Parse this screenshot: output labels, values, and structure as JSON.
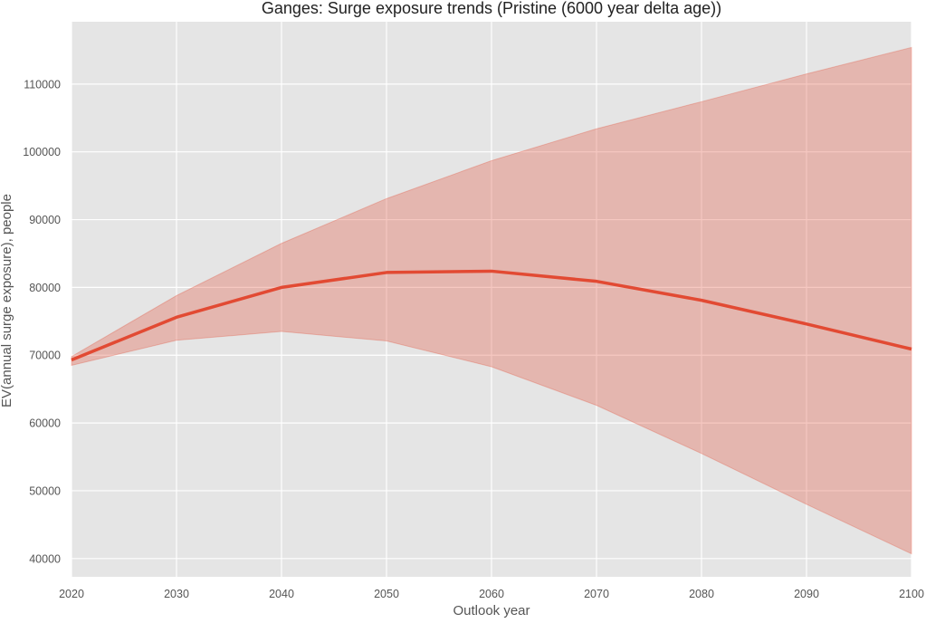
{
  "chart_data": {
    "type": "line",
    "title": "Ganges: Surge exposure trends (Pristine (6000 year delta age))",
    "xlabel": "Outlook year",
    "ylabel": "EV(annual surge exposure), people",
    "x": [
      2020,
      2030,
      2040,
      2050,
      2060,
      2070,
      2080,
      2090,
      2100
    ],
    "series": [
      {
        "values": [
          69300,
          75600,
          80000,
          82200,
          82400,
          80900,
          78100,
          74600,
          70900
        ],
        "lower": [
          68500,
          72200,
          73500,
          72100,
          68300,
          62600,
          55500,
          48000,
          40700
        ],
        "upper": [
          69800,
          78800,
          86500,
          93100,
          98700,
          103400,
          107400,
          111500,
          115400
        ]
      }
    ],
    "xlim": [
      2020,
      2100
    ],
    "ylim": [
      37300,
      119200
    ],
    "xticks": [
      "2020",
      "2030",
      "2040",
      "2050",
      "2060",
      "2070",
      "2080",
      "2090",
      "2100"
    ],
    "yticks": [
      "40000",
      "50000",
      "60000",
      "70000",
      "80000",
      "90000",
      "100000",
      "110000"
    ],
    "grid": true,
    "colors": {
      "line": "#e24a33",
      "band": "#e24a33",
      "plot_bg": "#e5e5e5",
      "grid": "#ffffff",
      "text": "#555555"
    }
  }
}
